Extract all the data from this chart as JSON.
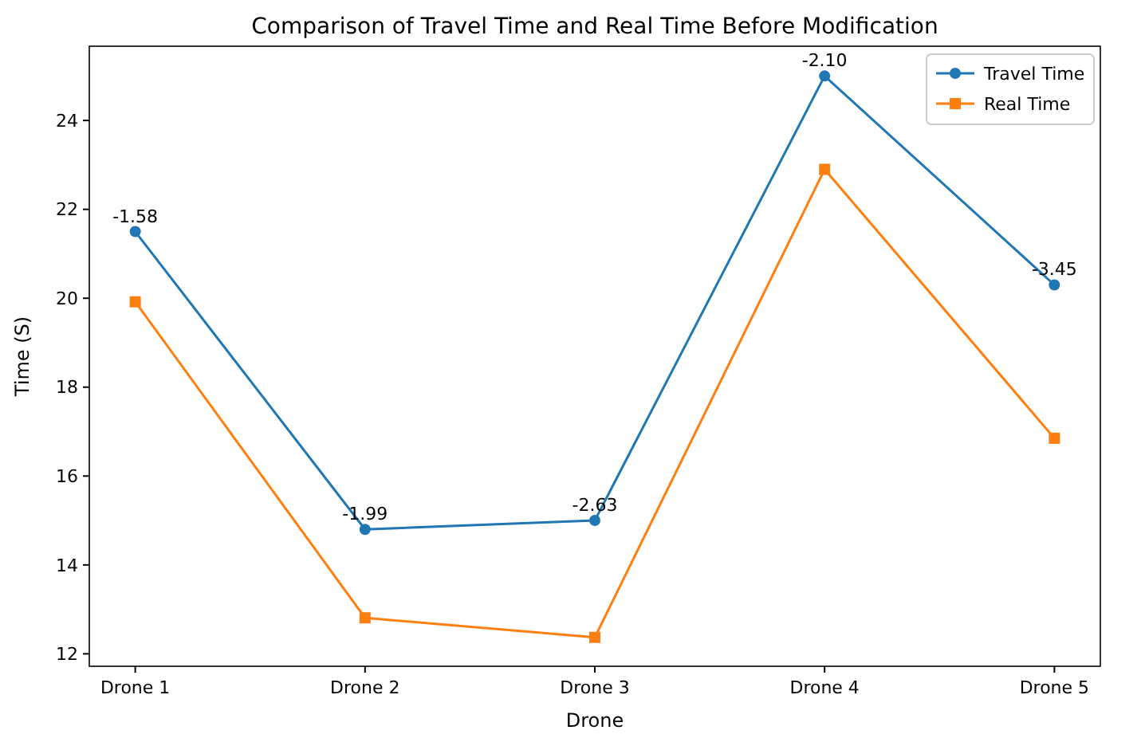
{
  "chart_data": {
    "type": "line",
    "title": "Comparison of Travel Time and Real Time Before Modification",
    "xlabel": "Drone",
    "ylabel": "Time (S)",
    "categories": [
      "Drone 1",
      "Drone 2",
      "Drone 3",
      "Drone 4",
      "Drone 5"
    ],
    "series": [
      {
        "name": "Travel Time",
        "color": "#1f77b4",
        "marker": "circle",
        "values": [
          21.5,
          14.8,
          15.0,
          25.0,
          20.3
        ]
      },
      {
        "name": "Real Time",
        "color": "#ff7f0e",
        "marker": "square",
        "values": [
          19.92,
          12.81,
          12.37,
          22.9,
          16.85
        ]
      }
    ],
    "ylim": [
      11.72,
      25.67
    ],
    "yticks": [
      12,
      14,
      16,
      18,
      20,
      22,
      24
    ],
    "legend": "top right",
    "annotations": [
      {
        "text": "-1.58",
        "x": "Drone 1",
        "y": 21.5
      },
      {
        "text": "-1.99",
        "x": "Drone 2",
        "y": 14.8
      },
      {
        "text": "-2.63",
        "x": "Drone 3",
        "y": 15.0
      },
      {
        "text": "-2.10",
        "x": "Drone 4",
        "y": 25.0
      },
      {
        "text": "-3.45",
        "x": "Drone 5",
        "y": 20.3
      }
    ]
  }
}
